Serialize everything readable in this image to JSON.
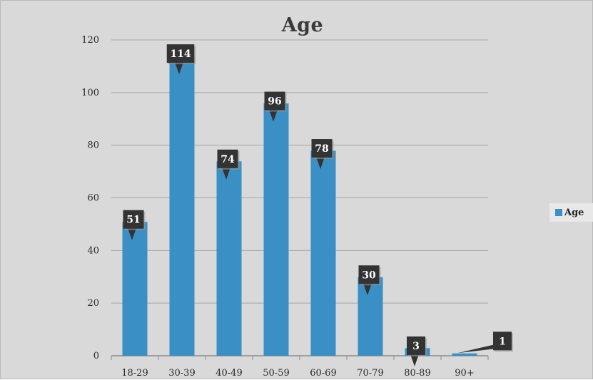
{
  "chart_data": {
    "type": "bar",
    "title": "Age",
    "categories": [
      "18-29",
      "30-39",
      "40-49",
      "50-59",
      "60-69",
      "70-79",
      "80-89",
      "90+"
    ],
    "series": [
      {
        "name": "Age",
        "values": [
          51,
          114,
          74,
          96,
          78,
          30,
          3,
          1
        ]
      }
    ],
    "yticks": [
      0,
      20,
      40,
      60,
      80,
      100,
      120
    ],
    "ylim": [
      0,
      120
    ],
    "grid": true,
    "legend_position": "right",
    "data_labels": true,
    "colors": {
      "bar": "#3a8fc4",
      "label_bg": "#333333",
      "plot_bg": "#d9d9d9",
      "grid": "#a6a6a6"
    }
  }
}
